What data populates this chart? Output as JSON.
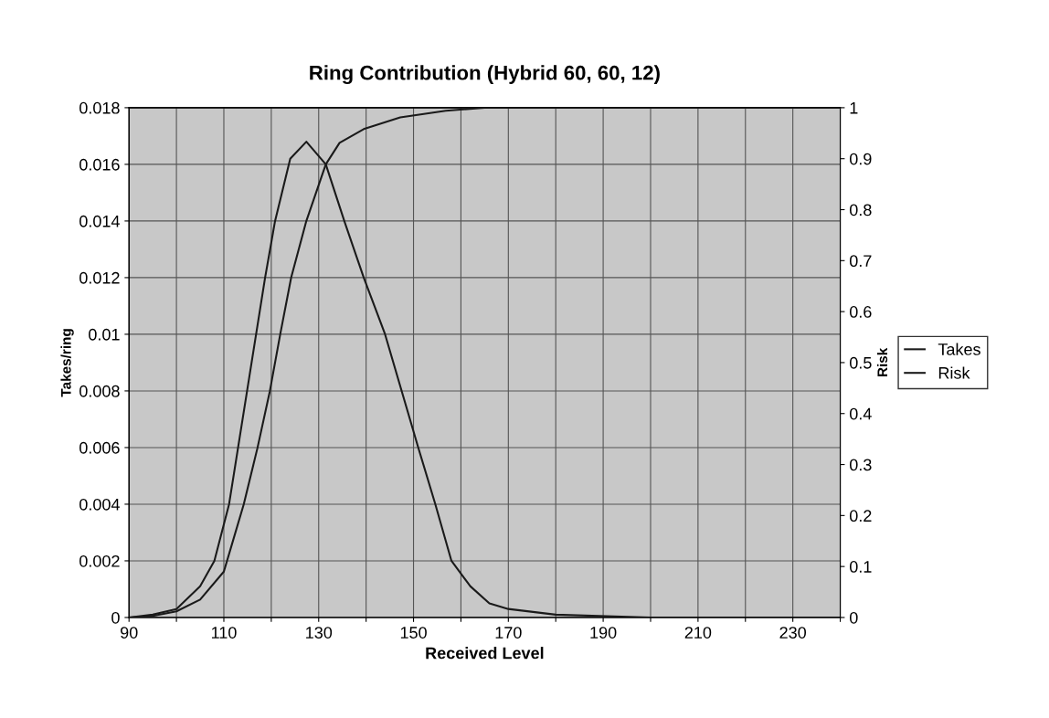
{
  "chart_data": {
    "type": "line",
    "title": "Ring Contribution (Hybrid 60, 60, 12)",
    "xlabel": "Received Level",
    "ylabel": "Takes/ring",
    "y2label": "Risk",
    "xlim": [
      90,
      240
    ],
    "xticks": [
      90,
      {
        "value": 100,
        "label": null
      },
      110,
      {
        "value": 120,
        "label": null
      },
      130,
      {
        "value": 140,
        "label": null
      },
      150,
      {
        "value": 160,
        "label": null
      },
      170,
      {
        "value": 180,
        "label": null
      },
      190,
      {
        "value": 200,
        "label": null
      },
      210,
      {
        "value": 220,
        "label": null
      },
      230,
      {
        "value": 240,
        "label": null
      }
    ],
    "ylim": [
      0,
      0.018
    ],
    "yticks": [
      0,
      0.002,
      0.004,
      0.006,
      0.008,
      0.01,
      0.012,
      0.014,
      0.016,
      0.018
    ],
    "y2lim": [
      0,
      1
    ],
    "y2ticks": [
      0,
      0.1,
      0.2,
      0.3,
      0.4,
      0.5,
      0.6,
      0.7,
      0.8,
      0.9,
      1
    ],
    "grid": true,
    "legend": "right",
    "marker": "none",
    "line_style": "solid",
    "series": [
      {
        "name": "Takes",
        "color": "#1a1a1a",
        "x": [
          90,
          95,
          100,
          105,
          108,
          111.1,
          113,
          114.9,
          116.8,
          118.7,
          120.8,
          124,
          127.4,
          131.5,
          135.4,
          139.5,
          144,
          147.5,
          151,
          154.6,
          158,
          162,
          166,
          170,
          180,
          200,
          240
        ],
        "values": [
          0,
          0.0001,
          0.0003,
          0.0011,
          0.002,
          0.004,
          0.006,
          0.008,
          0.01,
          0.012,
          0.014,
          0.0162,
          0.0168,
          0.016,
          0.014,
          0.012,
          0.01,
          0.008,
          0.006,
          0.004,
          0.002,
          0.0011,
          0.0005,
          0.0003,
          0.0001,
          0,
          0
        ]
      },
      {
        "name": "Risk",
        "color": "#1a1a1a",
        "axis": "y2",
        "x": [
          90,
          95,
          100,
          105,
          110,
          114.2,
          117.1,
          119.7,
          121.9,
          124.2,
          127.4,
          131.5,
          134.4,
          139.5,
          147.2,
          156.8,
          165,
          240
        ],
        "values": [
          0,
          0.003,
          0.012,
          0.035,
          0.09,
          0.222,
          0.333,
          0.444,
          0.556,
          0.667,
          0.778,
          0.889,
          0.931,
          0.958,
          0.981,
          0.994,
          1,
          1
        ]
      }
    ]
  }
}
